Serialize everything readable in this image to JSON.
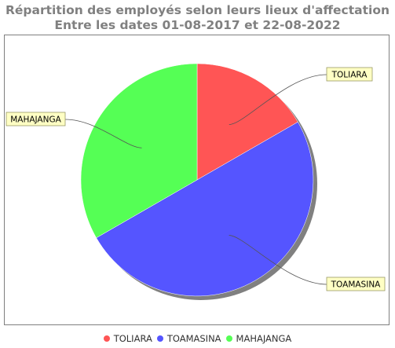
{
  "chart_data": {
    "type": "pie",
    "title": "Répartition des employés selon leurs lieux d'affectation",
    "subtitle": "Entre les dates 01-08-2017 et 22-08-2022",
    "categories": [
      "TOLIARA",
      "TOAMASINA",
      "MAHAJANGA"
    ],
    "values": [
      16.7,
      50.0,
      33.3
    ],
    "colors": [
      "#ff5555",
      "#5555ff",
      "#55ff55"
    ],
    "legend_position": "bottom",
    "grid": false
  }
}
